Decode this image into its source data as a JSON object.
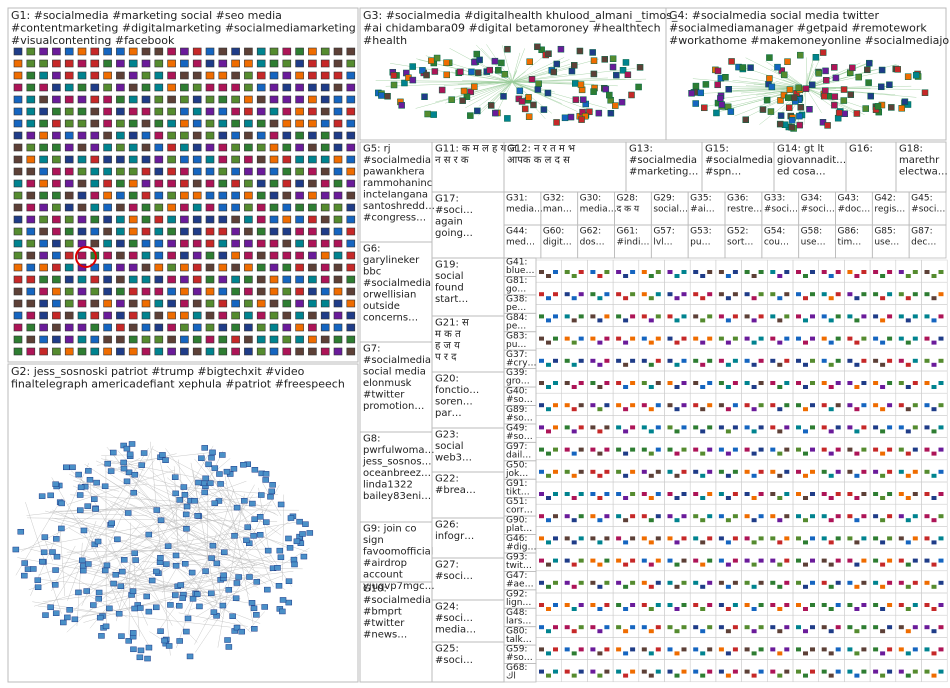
{
  "groups": [
    {
      "lines": [
        "G1: #socialmedia #marketing social #seo media",
        "#contentmarketing #digitalmarketing #socialmediamarketing",
        "#visualcontenting #facebook"
      ]
    },
    {
      "lines": [
        "G2: jess_sosnoski patriot #trump #bigtechxit #video",
        "finaltelegraph americadefiant xephula #patriot #freespeech"
      ]
    },
    {
      "lines": [
        "G3: #socialmedia #digitalhealth khulood_almani _timos_",
        "#ai chidambara09 #digital betamoroney #healthtech",
        "#health"
      ]
    },
    {
      "lines": [
        "G4: #socialmedia social media twitter",
        "#socialmediamanager #getpaid #remotework",
        "#workathome #makemoneyonline #socialmediajobs"
      ]
    },
    {
      "lines": [
        "G5: rj",
        "#socialmedia",
        "pawankhera",
        "rammohaninc",
        "incteIangana",
        "santoshredd…",
        "#congress…"
      ]
    },
    {
      "lines": [
        "G6:",
        "garylineker",
        "bbc",
        "#socialmedia",
        "orwellisian",
        "outside",
        "concerns…"
      ]
    },
    {
      "lines": [
        "G7:",
        "#socialmedia",
        "social media",
        "elonmusk",
        "#twitter",
        "promotion…"
      ]
    },
    {
      "lines": [
        "G8:",
        "pwrfulwoma…",
        "jess_sosnos…",
        "oceanbreez…",
        "linda1322",
        "bailey83eni…"
      ]
    },
    {
      "lines": [
        "G9: join co",
        "sign",
        "favoomofficial",
        "#airdrop",
        "account",
        "yjuqvp7mgc…"
      ]
    },
    {
      "lines": [
        "G10:",
        "#socialmedia",
        "#bmprt",
        "#twitter",
        "#news…"
      ]
    },
    {
      "lines": [
        "G11: क म ल ह य ज",
        "न स र क"
      ]
    },
    {
      "lines": [
        "G12: न र त म भ",
        "आपक क ल द स"
      ]
    },
    {
      "lines": [
        "G13:",
        "#socialmedia",
        "#marketing…"
      ]
    },
    {
      "lines": [
        "G15:",
        "#socialmedia",
        "#spn…"
      ]
    },
    {
      "lines": [
        "G14: gt lt",
        "giovannadit…",
        "ed cosa…"
      ]
    },
    {
      "lines": [
        "G16:"
      ]
    },
    {
      "lines": [
        "G18:",
        "marethr",
        "electwa…"
      ]
    },
    {
      "lines": [
        "G17:",
        "#soci…",
        "again",
        "going…"
      ]
    },
    {
      "lines": [
        "G19:",
        "social",
        "found",
        "start…"
      ]
    },
    {
      "lines": [
        "G21: स",
        "म क त",
        "ह ज य",
        "प र द"
      ]
    },
    {
      "lines": [
        "G20:",
        "fonctio…",
        "soren…",
        "par…"
      ]
    },
    {
      "lines": [
        "G23:",
        "social",
        "web3…"
      ]
    },
    {
      "lines": [
        "G22:",
        "#brea…"
      ]
    },
    {
      "lines": [
        "G26:",
        "infogr…"
      ]
    },
    {
      "lines": [
        "G27:",
        "#soci…"
      ]
    },
    {
      "lines": [
        "G24:",
        "#soci…",
        "media…"
      ]
    },
    {
      "lines": [
        "G25:",
        "#soci…"
      ]
    }
  ],
  "cells": [
    {
      "label": "G31:",
      "text": "media…"
    },
    {
      "label": "G32:",
      "text": "man…"
    },
    {
      "label": "G30:",
      "text": "media…"
    },
    {
      "label": "G28:",
      "text": "द क य"
    },
    {
      "label": "G29:",
      "text": "social…"
    },
    {
      "label": "G35:",
      "text": "#ai…"
    },
    {
      "label": "G36:",
      "text": "restre…"
    },
    {
      "label": "G33:",
      "text": "#soci…"
    },
    {
      "label": "G34:",
      "text": "#soci…"
    },
    {
      "label": "G43:",
      "text": "#doc…"
    },
    {
      "label": "G42:",
      "text": "regis…"
    },
    {
      "label": "G45:",
      "text": "#soci…"
    },
    {
      "label": "G44:",
      "text": "med…"
    },
    {
      "label": "G60:",
      "text": "digit…"
    },
    {
      "label": "G62:",
      "text": "dos…"
    },
    {
      "label": "G61:",
      "text": "#indi…"
    },
    {
      "label": "G57:",
      "text": "lvl…"
    },
    {
      "label": "G53:",
      "text": "pu…"
    },
    {
      "label": "G52:",
      "text": "sort…"
    },
    {
      "label": "G54:",
      "text": "cou…"
    },
    {
      "label": "G58:",
      "text": "use…"
    },
    {
      "label": "G86:",
      "text": "tim…"
    },
    {
      "label": "G85:",
      "text": "use…"
    },
    {
      "label": "G87:",
      "text": "dec…"
    }
  ],
  "column": [
    {
      "label": "G41:",
      "text": "blue…"
    },
    {
      "label": "G81:",
      "text": "go…"
    },
    {
      "label": "G38:",
      "text": "pe…"
    },
    {
      "label": "G84:",
      "text": "pe…"
    },
    {
      "label": "G83:",
      "text": "pu…"
    },
    {
      "label": "G37:",
      "text": "#cry…"
    },
    {
      "label": "G39:",
      "text": "gro…"
    },
    {
      "label": "G40:",
      "text": "#so…"
    },
    {
      "label": "G89:",
      "text": "#so…"
    },
    {
      "label": "G49:",
      "text": "#so…"
    },
    {
      "label": "G97:",
      "text": "dail…"
    },
    {
      "label": "G50:",
      "text": "jok…"
    },
    {
      "label": "G91:",
      "text": "tikt…"
    },
    {
      "label": "G51:",
      "text": "corr…"
    },
    {
      "label": "G90:",
      "text": "plat…"
    },
    {
      "label": "G46:",
      "text": "#dig…"
    },
    {
      "label": "G93:",
      "text": "twit…"
    },
    {
      "label": "G47:",
      "text": "#ae…"
    },
    {
      "label": "G92:",
      "text": "lign…"
    },
    {
      "label": "G48:",
      "text": "lars…"
    },
    {
      "label": "G80:",
      "text": "talk…"
    },
    {
      "label": "G59:",
      "text": "#so…"
    },
    {
      "label": "G68:",
      "text": "اك"
    }
  ]
}
